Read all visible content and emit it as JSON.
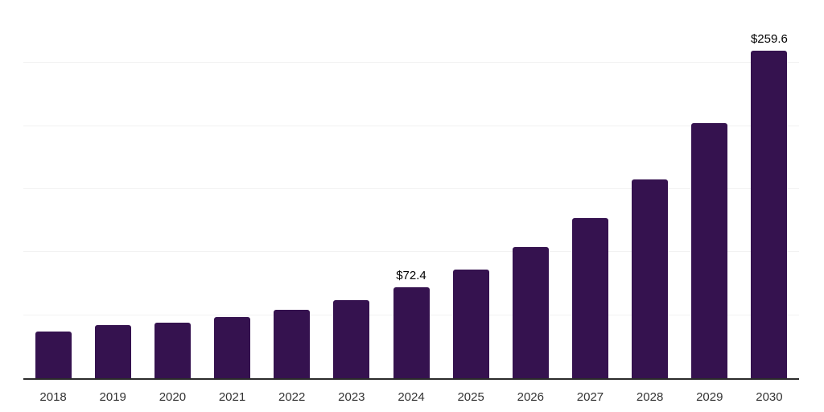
{
  "chart_data": {
    "type": "bar",
    "title": "",
    "xlabel": "",
    "ylabel": "",
    "categories": [
      "2018",
      "2019",
      "2020",
      "2021",
      "2022",
      "2023",
      "2024",
      "2025",
      "2026",
      "2027",
      "2028",
      "2029",
      "2030"
    ],
    "values": [
      37.0,
      42.1,
      44.0,
      48.3,
      54.1,
      62.2,
      72.4,
      86.2,
      104.0,
      127.0,
      157.9,
      202.1,
      259.6
    ],
    "data_labels": {
      "2024": "$72.4",
      "2030": "$259.6"
    },
    "ylim": [
      0,
      300
    ],
    "grid_step": 50,
    "grid": "horizontal",
    "legend_position": "none",
    "colors": {
      "bar": "#35124F",
      "gridline": "#f2f2f2",
      "axis": "#2b2b2b",
      "tick_label": "#333333",
      "data_label": "#000000",
      "background": "#ffffff"
    }
  }
}
